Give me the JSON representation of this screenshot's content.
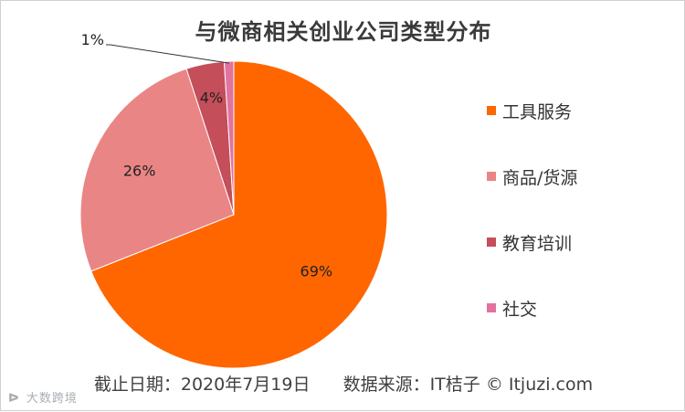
{
  "chart_data": {
    "type": "pie",
    "title": "与微商相关创业公司类型分布",
    "categories": [
      "工具服务",
      "商品/货源",
      "教育培训",
      "社交"
    ],
    "values": [
      69,
      26,
      4,
      1
    ],
    "labels": [
      "69%",
      "26%",
      "4%",
      "1%"
    ],
    "colors": [
      "#ff6600",
      "#ea8585",
      "#c44e5a",
      "#e2739e"
    ],
    "legend_position": "right"
  },
  "footer": {
    "date_text": "截止日期：2020年7月19日",
    "source_text": "数据来源：IT桔子 © Itjuzi.com"
  },
  "watermark": {
    "text": "大数跨境"
  }
}
